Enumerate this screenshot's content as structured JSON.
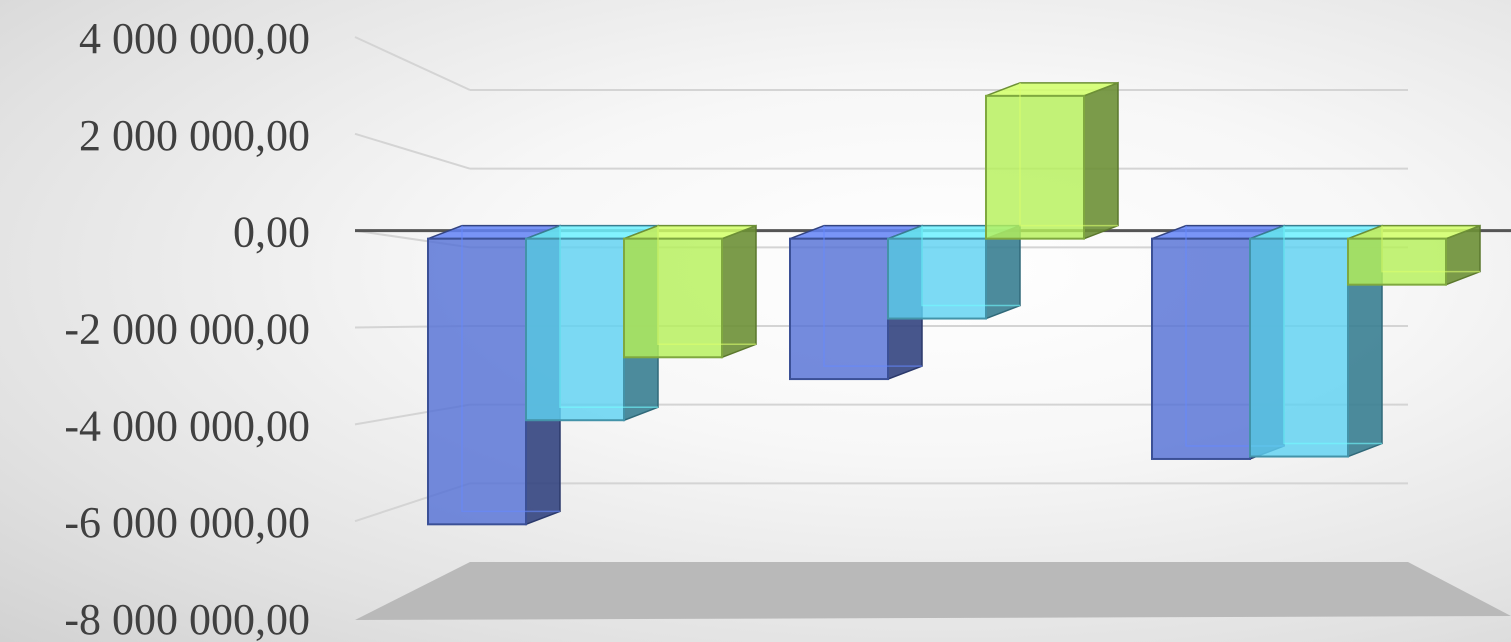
{
  "chart_data": {
    "type": "bar",
    "style": "3d-clustered-column",
    "categories": [
      "",
      "",
      ""
    ],
    "series": [
      {
        "values": [
          -5900000,
          -2900000,
          -4550000
        ],
        "color": "#5572d6"
      },
      {
        "values": [
          -3750000,
          -1650000,
          -4500000
        ],
        "color": "#5fd2f2"
      },
      {
        "values": [
          -2450000,
          2950000,
          -950000
        ],
        "color": "#b6f05a"
      }
    ],
    "ylim": [
      -8000000,
      4000000
    ],
    "yticks": [
      4000000,
      2000000,
      0,
      -2000000,
      -4000000,
      -6000000,
      -8000000
    ],
    "ytick_labels": [
      "4 000 000,00",
      "2 000 000,00",
      "0,00",
      "-2 000 000,00",
      "-4 000 000,00",
      "-6 000 000,00",
      "-8 000 000,00"
    ],
    "grid": true,
    "legend": "none",
    "title": "",
    "xlabel": "",
    "ylabel": ""
  }
}
